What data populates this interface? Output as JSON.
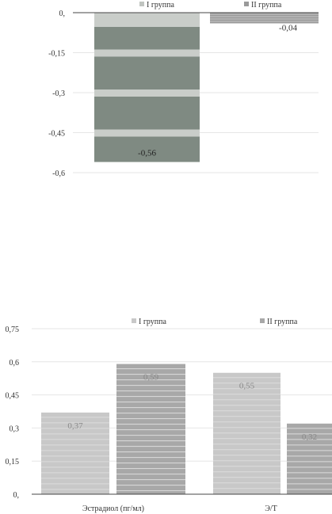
{
  "chart_data": [
    {
      "type": "bar",
      "categories": [
        ""
      ],
      "series": [
        {
          "name": "I группа",
          "values": [
            -0.56
          ],
          "label": "-0,56",
          "color": "#7f8a82"
        },
        {
          "name": "II группа",
          "values": [
            -0.04
          ],
          "label": "-0,04",
          "color": "#9a9a9a"
        }
      ],
      "ylim": [
        -0.6,
        0
      ],
      "yticks": [
        0,
        -0.15,
        -0.3,
        -0.45,
        -0.6
      ],
      "ytick_labels": [
        "0,",
        "-0,15",
        "-0,3",
        "-0,45",
        "-0,6"
      ],
      "grid": true,
      "legend": "top"
    },
    {
      "type": "bar",
      "categories": [
        "Эстрадиол (пг/мл)",
        "Э/Т"
      ],
      "series": [
        {
          "name": "I группа",
          "values": [
            0.37,
            0.55
          ],
          "labels": [
            "0,37",
            "0,55"
          ],
          "color": "#c8c8c8"
        },
        {
          "name": "II группа",
          "values": [
            0.59,
            0.32
          ],
          "labels": [
            "0,59",
            "0,32"
          ],
          "color": "#a8a8a8"
        }
      ],
      "ylim": [
        0,
        0.75
      ],
      "yticks": [
        0,
        0.15,
        0.3,
        0.45,
        0.6,
        0.75
      ],
      "ytick_labels": [
        "0,",
        "0,15",
        "0,3",
        "0,45",
        "0,6",
        "0,75"
      ],
      "grid": true,
      "legend": "top"
    }
  ]
}
